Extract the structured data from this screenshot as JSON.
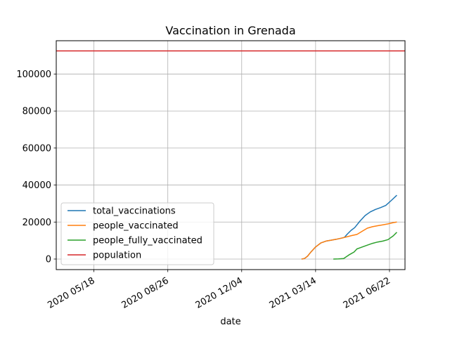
{
  "chart_data": {
    "type": "line",
    "title": "Vaccination in Grenada",
    "xlabel": "date",
    "ylabel": "",
    "x_type": "date",
    "xlim": [
      "2020-03-28",
      "2021-07-13"
    ],
    "ylim": [
      -5700,
      118000
    ],
    "x_ticks": [
      {
        "date": "2020-05-18",
        "label": "2020 05/18"
      },
      {
        "date": "2020-08-26",
        "label": "2020 08/26"
      },
      {
        "date": "2020-12-04",
        "label": "2020 12/04"
      },
      {
        "date": "2021-03-14",
        "label": "2021 03/14"
      },
      {
        "date": "2021-06-22",
        "label": "2021 06/22"
      }
    ],
    "y_ticks": [
      0,
      20000,
      40000,
      60000,
      80000,
      100000
    ],
    "grid": true,
    "legend_position": "lower-left",
    "series": [
      {
        "name": "total_vaccinations",
        "color": "#1f77b4",
        "points": [
          [
            "2021-02-23",
            0
          ],
          [
            "2021-02-27",
            300
          ],
          [
            "2021-03-03",
            1500
          ],
          [
            "2021-03-07",
            3500
          ],
          [
            "2021-03-14",
            6500
          ],
          [
            "2021-03-21",
            8700
          ],
          [
            "2021-03-28",
            9700
          ],
          [
            "2021-04-04",
            10200
          ],
          [
            "2021-04-11",
            10700
          ],
          [
            "2021-04-18",
            11300
          ],
          [
            "2021-04-22",
            11700
          ],
          [
            "2021-04-26",
            13500
          ],
          [
            "2021-05-01",
            15500
          ],
          [
            "2021-05-06",
            17000
          ],
          [
            "2021-05-13",
            20500
          ],
          [
            "2021-05-20",
            23500
          ],
          [
            "2021-05-27",
            25500
          ],
          [
            "2021-06-03",
            26800
          ],
          [
            "2021-06-10",
            27800
          ],
          [
            "2021-06-17",
            29000
          ],
          [
            "2021-06-24",
            31500
          ],
          [
            "2021-07-02",
            34500
          ]
        ]
      },
      {
        "name": "people_vaccinated",
        "color": "#ff7f0e",
        "points": [
          [
            "2021-02-23",
            0
          ],
          [
            "2021-02-27",
            300
          ],
          [
            "2021-03-03",
            1500
          ],
          [
            "2021-03-07",
            3500
          ],
          [
            "2021-03-14",
            6500
          ],
          [
            "2021-03-21",
            8700
          ],
          [
            "2021-03-28",
            9700
          ],
          [
            "2021-04-04",
            10200
          ],
          [
            "2021-04-11",
            10700
          ],
          [
            "2021-04-18",
            11300
          ],
          [
            "2021-04-25",
            12000
          ],
          [
            "2021-05-02",
            12700
          ],
          [
            "2021-05-09",
            13300
          ],
          [
            "2021-05-16",
            15000
          ],
          [
            "2021-05-23",
            16700
          ],
          [
            "2021-05-30",
            17500
          ],
          [
            "2021-06-06",
            18000
          ],
          [
            "2021-06-13",
            18500
          ],
          [
            "2021-06-20",
            19000
          ],
          [
            "2021-06-27",
            19700
          ],
          [
            "2021-07-02",
            20000
          ]
        ]
      },
      {
        "name": "people_fully_vaccinated",
        "color": "#2ca02c",
        "points": [
          [
            "2021-04-07",
            0
          ],
          [
            "2021-04-14",
            100
          ],
          [
            "2021-04-21",
            300
          ],
          [
            "2021-04-28",
            2200
          ],
          [
            "2021-05-05",
            3800
          ],
          [
            "2021-05-09",
            5500
          ],
          [
            "2021-05-16",
            6500
          ],
          [
            "2021-05-23",
            7500
          ],
          [
            "2021-05-30",
            8500
          ],
          [
            "2021-06-06",
            9200
          ],
          [
            "2021-06-13",
            9700
          ],
          [
            "2021-06-20",
            10500
          ],
          [
            "2021-06-27",
            12500
          ],
          [
            "2021-07-02",
            14500
          ]
        ]
      },
      {
        "name": "population",
        "color": "#d62728",
        "points": [
          [
            "2020-03-28",
            112500
          ],
          [
            "2021-07-13",
            112500
          ]
        ]
      }
    ]
  }
}
